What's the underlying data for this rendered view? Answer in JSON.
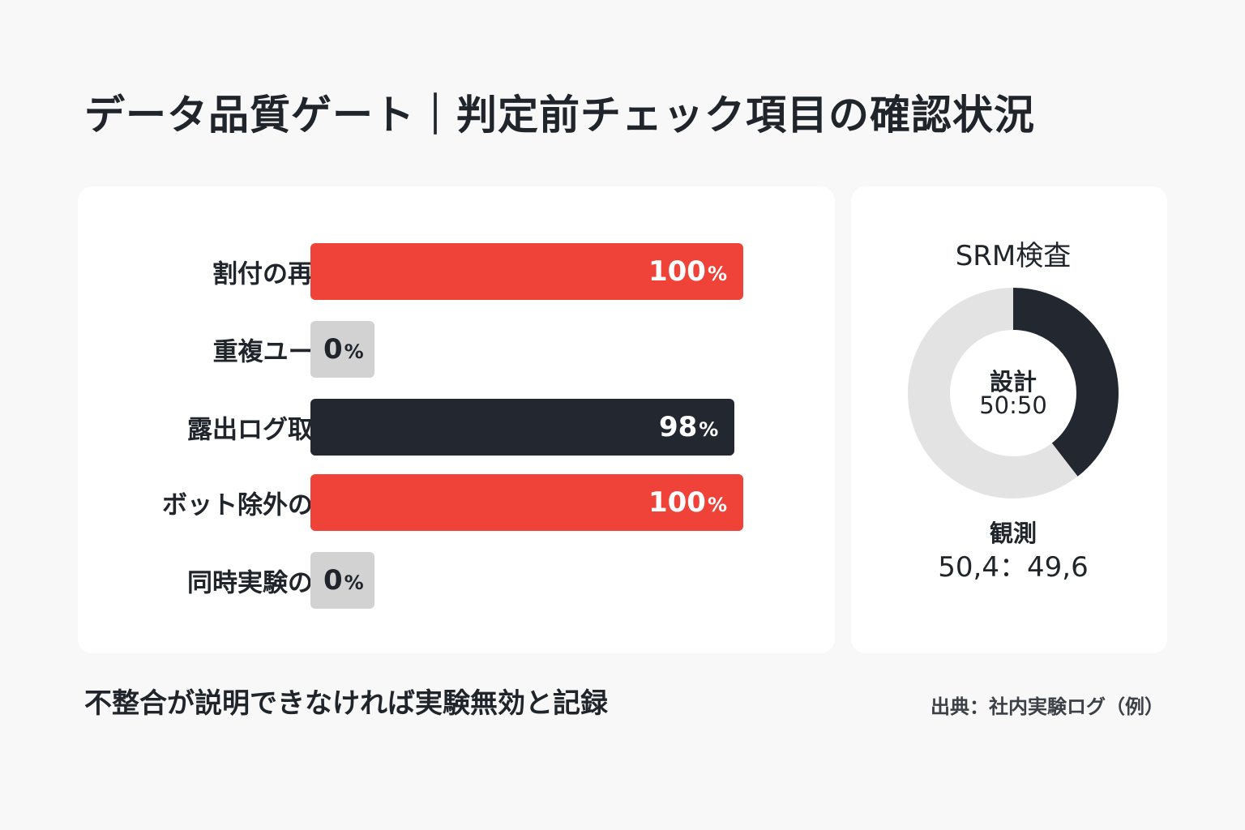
{
  "title": "データ品質ゲート｜判定前チェック項目の確認状況",
  "colors": {
    "red": "#ef4238",
    "dark": "#232830",
    "gray": "#d2d2d2",
    "donut_light": "#e3e3e3"
  },
  "chart_data": [
    {
      "type": "bar",
      "orientation": "horizontal",
      "categories": [
        "割付の再現性",
        "重複ユーザー",
        "露出ログ取得率",
        "ボット除外の対性",
        "同時実験の干渉"
      ],
      "values": [
        100,
        0,
        98,
        100,
        0
      ],
      "value_labels": [
        "100",
        "0",
        "98",
        "100",
        "0"
      ],
      "unit": "%",
      "bar_colors": [
        "red",
        "gray",
        "dark",
        "red",
        "gray"
      ],
      "xlim": [
        0,
        100
      ]
    },
    {
      "type": "pie",
      "variant": "donut",
      "title": "SRM検査",
      "center_label": "設計",
      "center_value": "50:50",
      "observed_label": "観測",
      "observed_value": "50,4：49,6",
      "slices": [
        {
          "value": 39.5,
          "color": "dark"
        },
        {
          "value": 60.5,
          "color": "light"
        }
      ]
    }
  ],
  "footnote": "不整合が説明できなければ実験無効と記録",
  "source": "出典：社内実験ログ（例）"
}
